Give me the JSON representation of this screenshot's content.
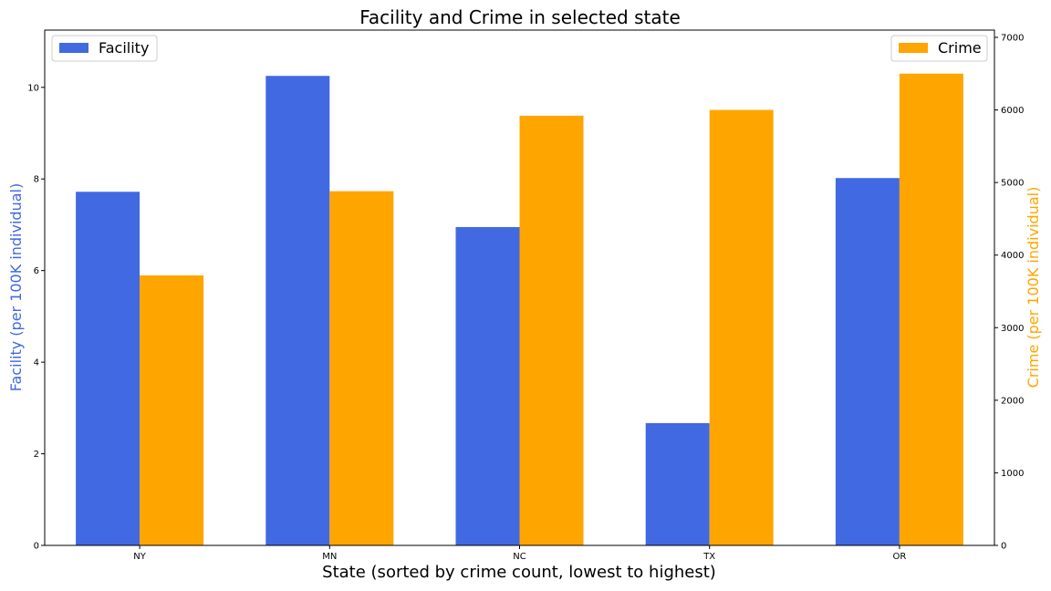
{
  "chart_data": {
    "type": "bar",
    "title": "Facility and Crime in selected state",
    "xlabel": "State (sorted by crime count, lowest to highest)",
    "categories": [
      "NY",
      "MN",
      "NC",
      "TX",
      "OR"
    ],
    "series": [
      {
        "name": "Facility",
        "axis": "left",
        "color": "#4169e1",
        "values": [
          7.72,
          10.25,
          6.95,
          2.67,
          8.02
        ]
      },
      {
        "name": "Crime",
        "axis": "right",
        "color": "#ffa500",
        "values": [
          3720,
          4880,
          5920,
          6000,
          6500
        ]
      }
    ],
    "y_left": {
      "label": "Facility (per 100K individual)",
      "label_color": "#4169e1",
      "lim": [
        0,
        11.25
      ],
      "ticks": [
        0,
        2,
        4,
        6,
        8,
        10
      ]
    },
    "y_right": {
      "label": "Crime (per 100K individual)",
      "label_color": "#ffa500",
      "lim": [
        0,
        7100
      ],
      "ticks": [
        0,
        1000,
        2000,
        3000,
        4000,
        5000,
        6000,
        7000
      ]
    },
    "legend_left_placement": "top-left",
    "legend_right_placement": "top-right",
    "grid": false
  }
}
